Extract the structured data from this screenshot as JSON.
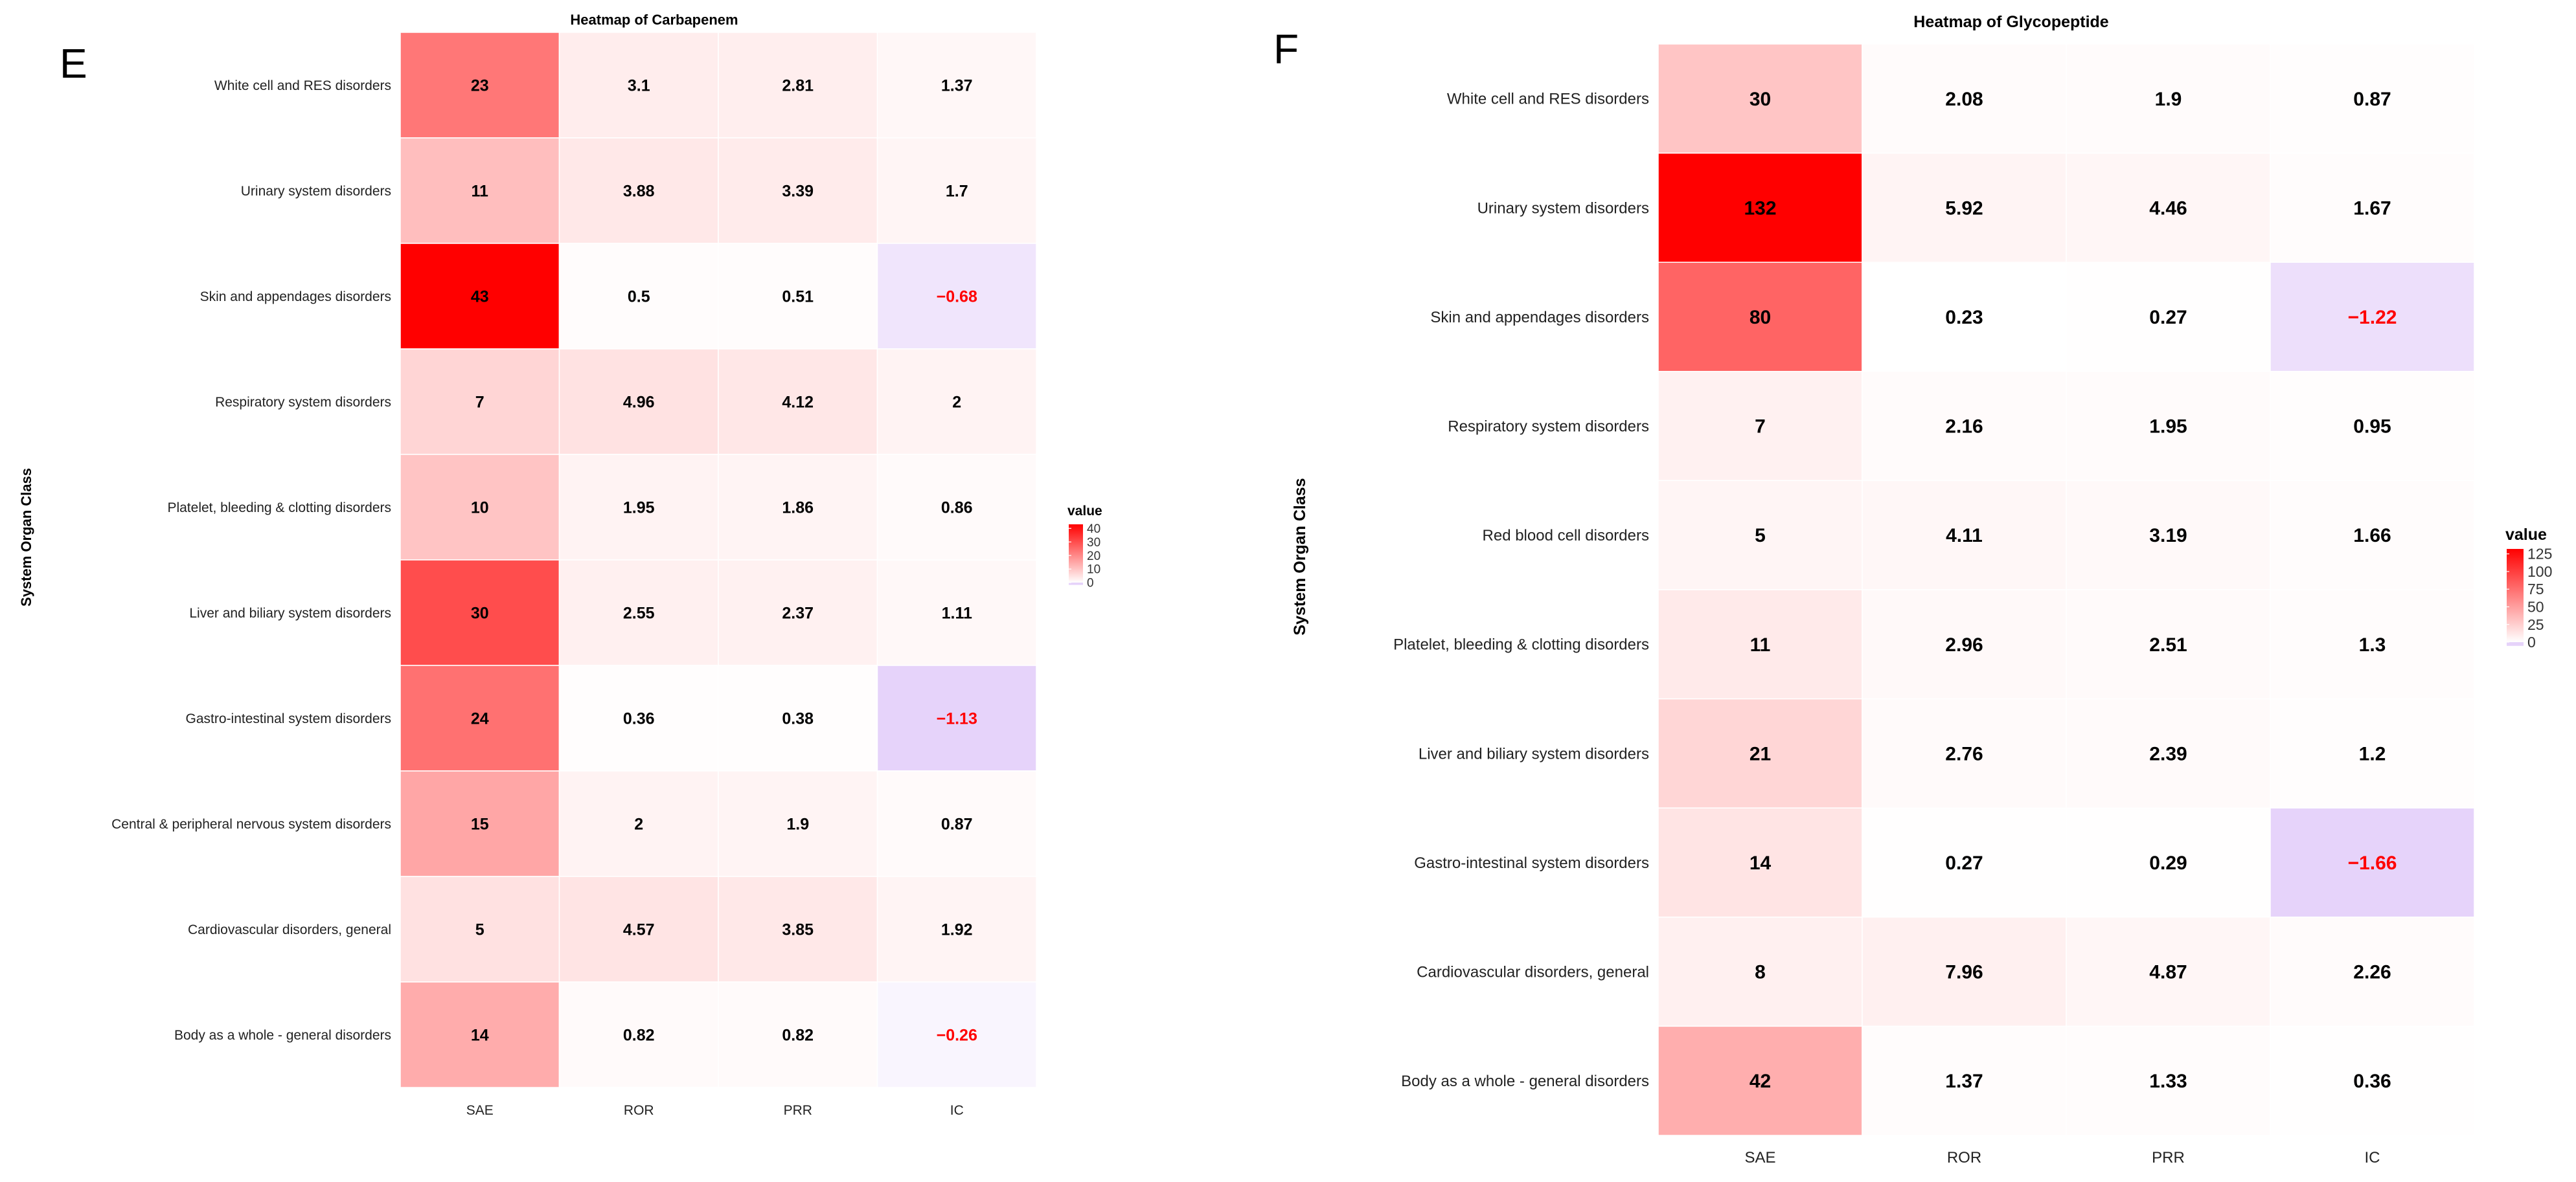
{
  "chart_data": [
    {
      "type": "heatmap",
      "panel_label": "E",
      "title": "Heatmap of Carbapenem",
      "ylabel": "System Organ Class",
      "xlabel": "",
      "columns": [
        "SAE",
        "ROR",
        "PRR",
        "IC"
      ],
      "rows": [
        {
          "name": "White cell and RES disorders",
          "values": [
            "23",
            "3.1",
            "2.81",
            "1.37"
          ]
        },
        {
          "name": "Urinary system disorders",
          "values": [
            "11",
            "3.88",
            "3.39",
            "1.7"
          ]
        },
        {
          "name": "Skin and appendages disorders",
          "values": [
            "43",
            "0.5",
            "0.51",
            "−0.68"
          ]
        },
        {
          "name": "Respiratory system disorders",
          "values": [
            "7",
            "4.96",
            "4.12",
            "2"
          ]
        },
        {
          "name": "Platelet, bleeding & clotting disorders",
          "values": [
            "10",
            "1.95",
            "1.86",
            "0.86"
          ]
        },
        {
          "name": "Liver and biliary system disorders",
          "values": [
            "30",
            "2.55",
            "2.37",
            "1.11"
          ]
        },
        {
          "name": "Gastro-intestinal system disorders",
          "values": [
            "24",
            "0.36",
            "0.38",
            "−1.13"
          ]
        },
        {
          "name": "Central & peripheral nervous system disorders",
          "values": [
            "15",
            "2",
            "1.9",
            "0.87"
          ]
        },
        {
          "name": "Cardiovascular disorders, general",
          "values": [
            "5",
            "4.57",
            "3.85",
            "1.92"
          ]
        },
        {
          "name": "Body as a whole - general disorders",
          "values": [
            "14",
            "0.82",
            "0.82",
            "−0.26"
          ]
        }
      ],
      "color_scale": {
        "min": -1.13,
        "max": 43,
        "low": "#e6d3fa",
        "mid": "#ffffff",
        "high": "#ff0000"
      },
      "legend": {
        "title": "value",
        "ticks": [
          "40",
          "30",
          "20",
          "10",
          "0"
        ],
        "tick_values": [
          40,
          30,
          20,
          10,
          0
        ],
        "placement": "right"
      }
    },
    {
      "type": "heatmap",
      "panel_label": "F",
      "title": "Heatmap of Glycopeptide",
      "ylabel": "System Organ Class",
      "xlabel": "",
      "columns": [
        "SAE",
        "ROR",
        "PRR",
        "IC"
      ],
      "rows": [
        {
          "name": "White cell and RES disorders",
          "values": [
            "30",
            "2.08",
            "1.9",
            "0.87"
          ]
        },
        {
          "name": "Urinary system disorders",
          "values": [
            "132",
            "5.92",
            "4.46",
            "1.67"
          ]
        },
        {
          "name": "Skin and appendages disorders",
          "values": [
            "80",
            "0.23",
            "0.27",
            "−1.22"
          ]
        },
        {
          "name": "Respiratory system disorders",
          "values": [
            "7",
            "2.16",
            "1.95",
            "0.95"
          ]
        },
        {
          "name": "Red blood cell disorders",
          "values": [
            "5",
            "4.11",
            "3.19",
            "1.66"
          ]
        },
        {
          "name": "Platelet, bleeding & clotting disorders",
          "values": [
            "11",
            "2.96",
            "2.51",
            "1.3"
          ]
        },
        {
          "name": "Liver and biliary system disorders",
          "values": [
            "21",
            "2.76",
            "2.39",
            "1.2"
          ]
        },
        {
          "name": "Gastro-intestinal system disorders",
          "values": [
            "14",
            "0.27",
            "0.29",
            "−1.66"
          ]
        },
        {
          "name": "Cardiovascular disorders, general",
          "values": [
            "8",
            "7.96",
            "4.87",
            "2.26"
          ]
        },
        {
          "name": "Body as a whole - general disorders",
          "values": [
            "42",
            "1.37",
            "1.33",
            "0.36"
          ]
        }
      ],
      "color_scale": {
        "min": -1.66,
        "max": 132,
        "low": "#e6d3fa",
        "mid": "#ffffff",
        "high": "#ff0000"
      },
      "legend": {
        "title": "value",
        "ticks": [
          "125",
          "100",
          "75",
          "50",
          "25",
          "0"
        ],
        "tick_values": [
          125,
          100,
          75,
          50,
          25,
          0
        ],
        "placement": "right"
      }
    }
  ]
}
